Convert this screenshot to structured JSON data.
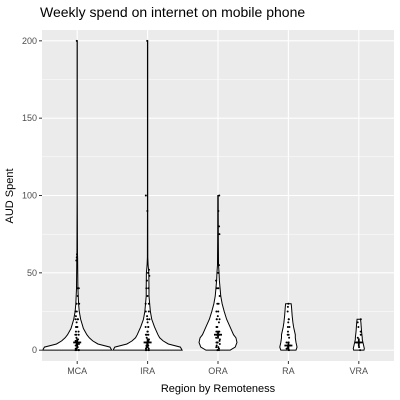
{
  "chart_data": {
    "type": "violin",
    "title": "Weekly spend on internet on mobile phone",
    "xlabel": "Region by Remoteness",
    "ylabel": "AUD Spent",
    "categories": [
      "MCA",
      "IRA",
      "ORA",
      "RA",
      "VRA"
    ],
    "ylim": [
      -7,
      207
    ],
    "y_ticks": [
      0,
      50,
      100,
      150,
      200
    ],
    "grid": true,
    "background": "#ebebeb",
    "grid_color": "#ffffff",
    "violins": [
      {
        "category": "MCA",
        "mean": 5,
        "profile": [
          [
            0,
            1.0
          ],
          [
            2,
            0.95
          ],
          [
            4,
            0.6
          ],
          [
            6,
            0.45
          ],
          [
            8,
            0.35
          ],
          [
            10,
            0.28
          ],
          [
            14,
            0.18
          ],
          [
            20,
            0.1
          ],
          [
            25,
            0.06
          ],
          [
            30,
            0.04
          ],
          [
            40,
            0.02
          ],
          [
            60,
            0.012
          ],
          [
            62,
            0.008
          ],
          [
            100,
            0.003
          ],
          [
            200,
            0.003
          ]
        ],
        "points": [
          0,
          0,
          0,
          0,
          0,
          1,
          1,
          2,
          2,
          3,
          3,
          4,
          4,
          5,
          5,
          5,
          6,
          7,
          8,
          10,
          10,
          10,
          12,
          12,
          15,
          15,
          15,
          18,
          20,
          20,
          20,
          22,
          25,
          25,
          30,
          30,
          35,
          40,
          40,
          58,
          60,
          62,
          200
        ]
      },
      {
        "category": "IRA",
        "mean": 5,
        "profile": [
          [
            0,
            1.0
          ],
          [
            2,
            0.95
          ],
          [
            4,
            0.6
          ],
          [
            6,
            0.45
          ],
          [
            8,
            0.35
          ],
          [
            10,
            0.3
          ],
          [
            15,
            0.2
          ],
          [
            20,
            0.12
          ],
          [
            25,
            0.08
          ],
          [
            30,
            0.06
          ],
          [
            35,
            0.04
          ],
          [
            40,
            0.04
          ],
          [
            50,
            0.035
          ],
          [
            55,
            0.015
          ],
          [
            60,
            0.006
          ],
          [
            90,
            0.004
          ],
          [
            100,
            0.004
          ],
          [
            200,
            0.004
          ]
        ],
        "points": [
          0,
          0,
          0,
          0,
          0,
          1,
          1,
          2,
          2,
          3,
          3,
          4,
          5,
          5,
          5,
          6,
          7,
          8,
          10,
          10,
          10,
          12,
          12,
          15,
          15,
          15,
          18,
          20,
          20,
          20,
          22,
          25,
          25,
          30,
          30,
          35,
          40,
          40,
          45,
          48,
          50,
          52,
          90,
          100,
          200
        ]
      },
      {
        "category": "ORA",
        "mean": 10,
        "profile": [
          [
            0,
            0.35
          ],
          [
            2,
            0.5
          ],
          [
            5,
            0.55
          ],
          [
            8,
            0.52
          ],
          [
            10,
            0.45
          ],
          [
            15,
            0.35
          ],
          [
            20,
            0.25
          ],
          [
            25,
            0.18
          ],
          [
            30,
            0.12
          ],
          [
            35,
            0.08
          ],
          [
            40,
            0.06
          ],
          [
            45,
            0.04
          ],
          [
            50,
            0.03
          ],
          [
            55,
            0.015
          ],
          [
            70,
            0.01
          ],
          [
            80,
            0.008
          ],
          [
            100,
            0.006
          ]
        ],
        "points": [
          0,
          0,
          0,
          1,
          2,
          2,
          3,
          4,
          5,
          5,
          5,
          6,
          7,
          8,
          10,
          10,
          10,
          12,
          12,
          15,
          15,
          15,
          18,
          20,
          20,
          20,
          22,
          25,
          25,
          30,
          30,
          35,
          40,
          40,
          45,
          50,
          55,
          75,
          80,
          90,
          100
        ]
      },
      {
        "category": "RA",
        "mean": 3,
        "profile": [
          [
            0,
            0.22
          ],
          [
            2,
            0.25
          ],
          [
            5,
            0.22
          ],
          [
            8,
            0.2
          ],
          [
            10,
            0.2
          ],
          [
            12,
            0.18
          ],
          [
            15,
            0.15
          ],
          [
            18,
            0.13
          ],
          [
            20,
            0.12
          ],
          [
            22,
            0.11
          ],
          [
            25,
            0.1
          ],
          [
            28,
            0.09
          ],
          [
            30,
            0.08
          ]
        ],
        "points": [
          0,
          0,
          1,
          2,
          3,
          5,
          5,
          8,
          10,
          10,
          12,
          15,
          15,
          18,
          20,
          20,
          25,
          28,
          30
        ]
      },
      {
        "category": "VRA",
        "mean": 5,
        "profile": [
          [
            0,
            0.15
          ],
          [
            1,
            0.16
          ],
          [
            3,
            0.14
          ],
          [
            5,
            0.12
          ],
          [
            7,
            0.1
          ],
          [
            8,
            0.1
          ],
          [
            10,
            0.09
          ],
          [
            12,
            0.08
          ],
          [
            15,
            0.07
          ],
          [
            18,
            0.06
          ],
          [
            20,
            0.05
          ]
        ],
        "points": [
          0,
          2,
          5,
          5,
          8,
          10,
          12,
          15,
          18,
          20
        ]
      }
    ]
  }
}
